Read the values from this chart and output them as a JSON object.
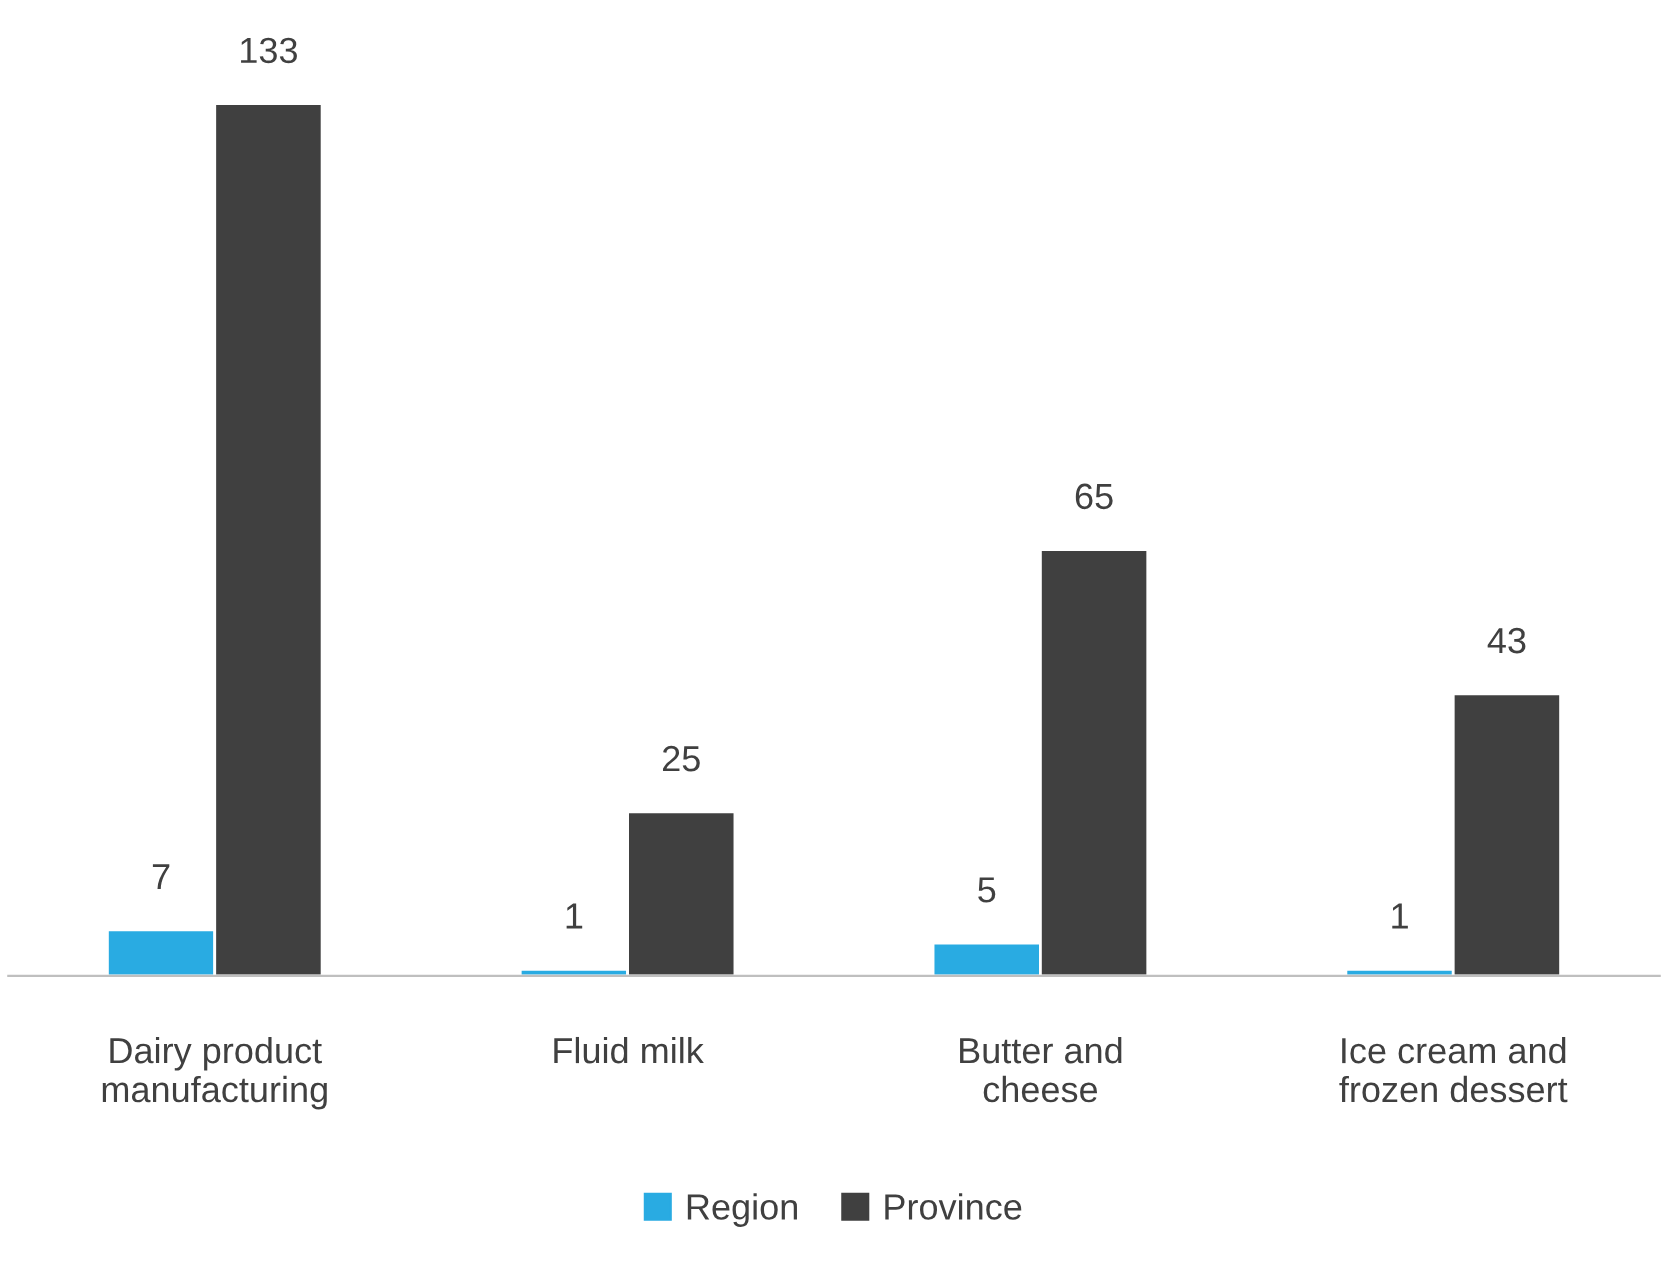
{
  "chart_data": {
    "type": "bar",
    "categories": [
      "Dairy product\nmanufacturing",
      "Fluid milk",
      "Butter and\ncheese",
      "Ice cream and\nfrozen dessert"
    ],
    "series": [
      {
        "name": "Region",
        "color": "#29abe2",
        "values": [
          7,
          1,
          5,
          1
        ]
      },
      {
        "name": "Province",
        "color": "#404040",
        "values": [
          133,
          25,
          65,
          43
        ]
      }
    ],
    "data_labels": true,
    "legend": "bottom",
    "grid": false
  }
}
